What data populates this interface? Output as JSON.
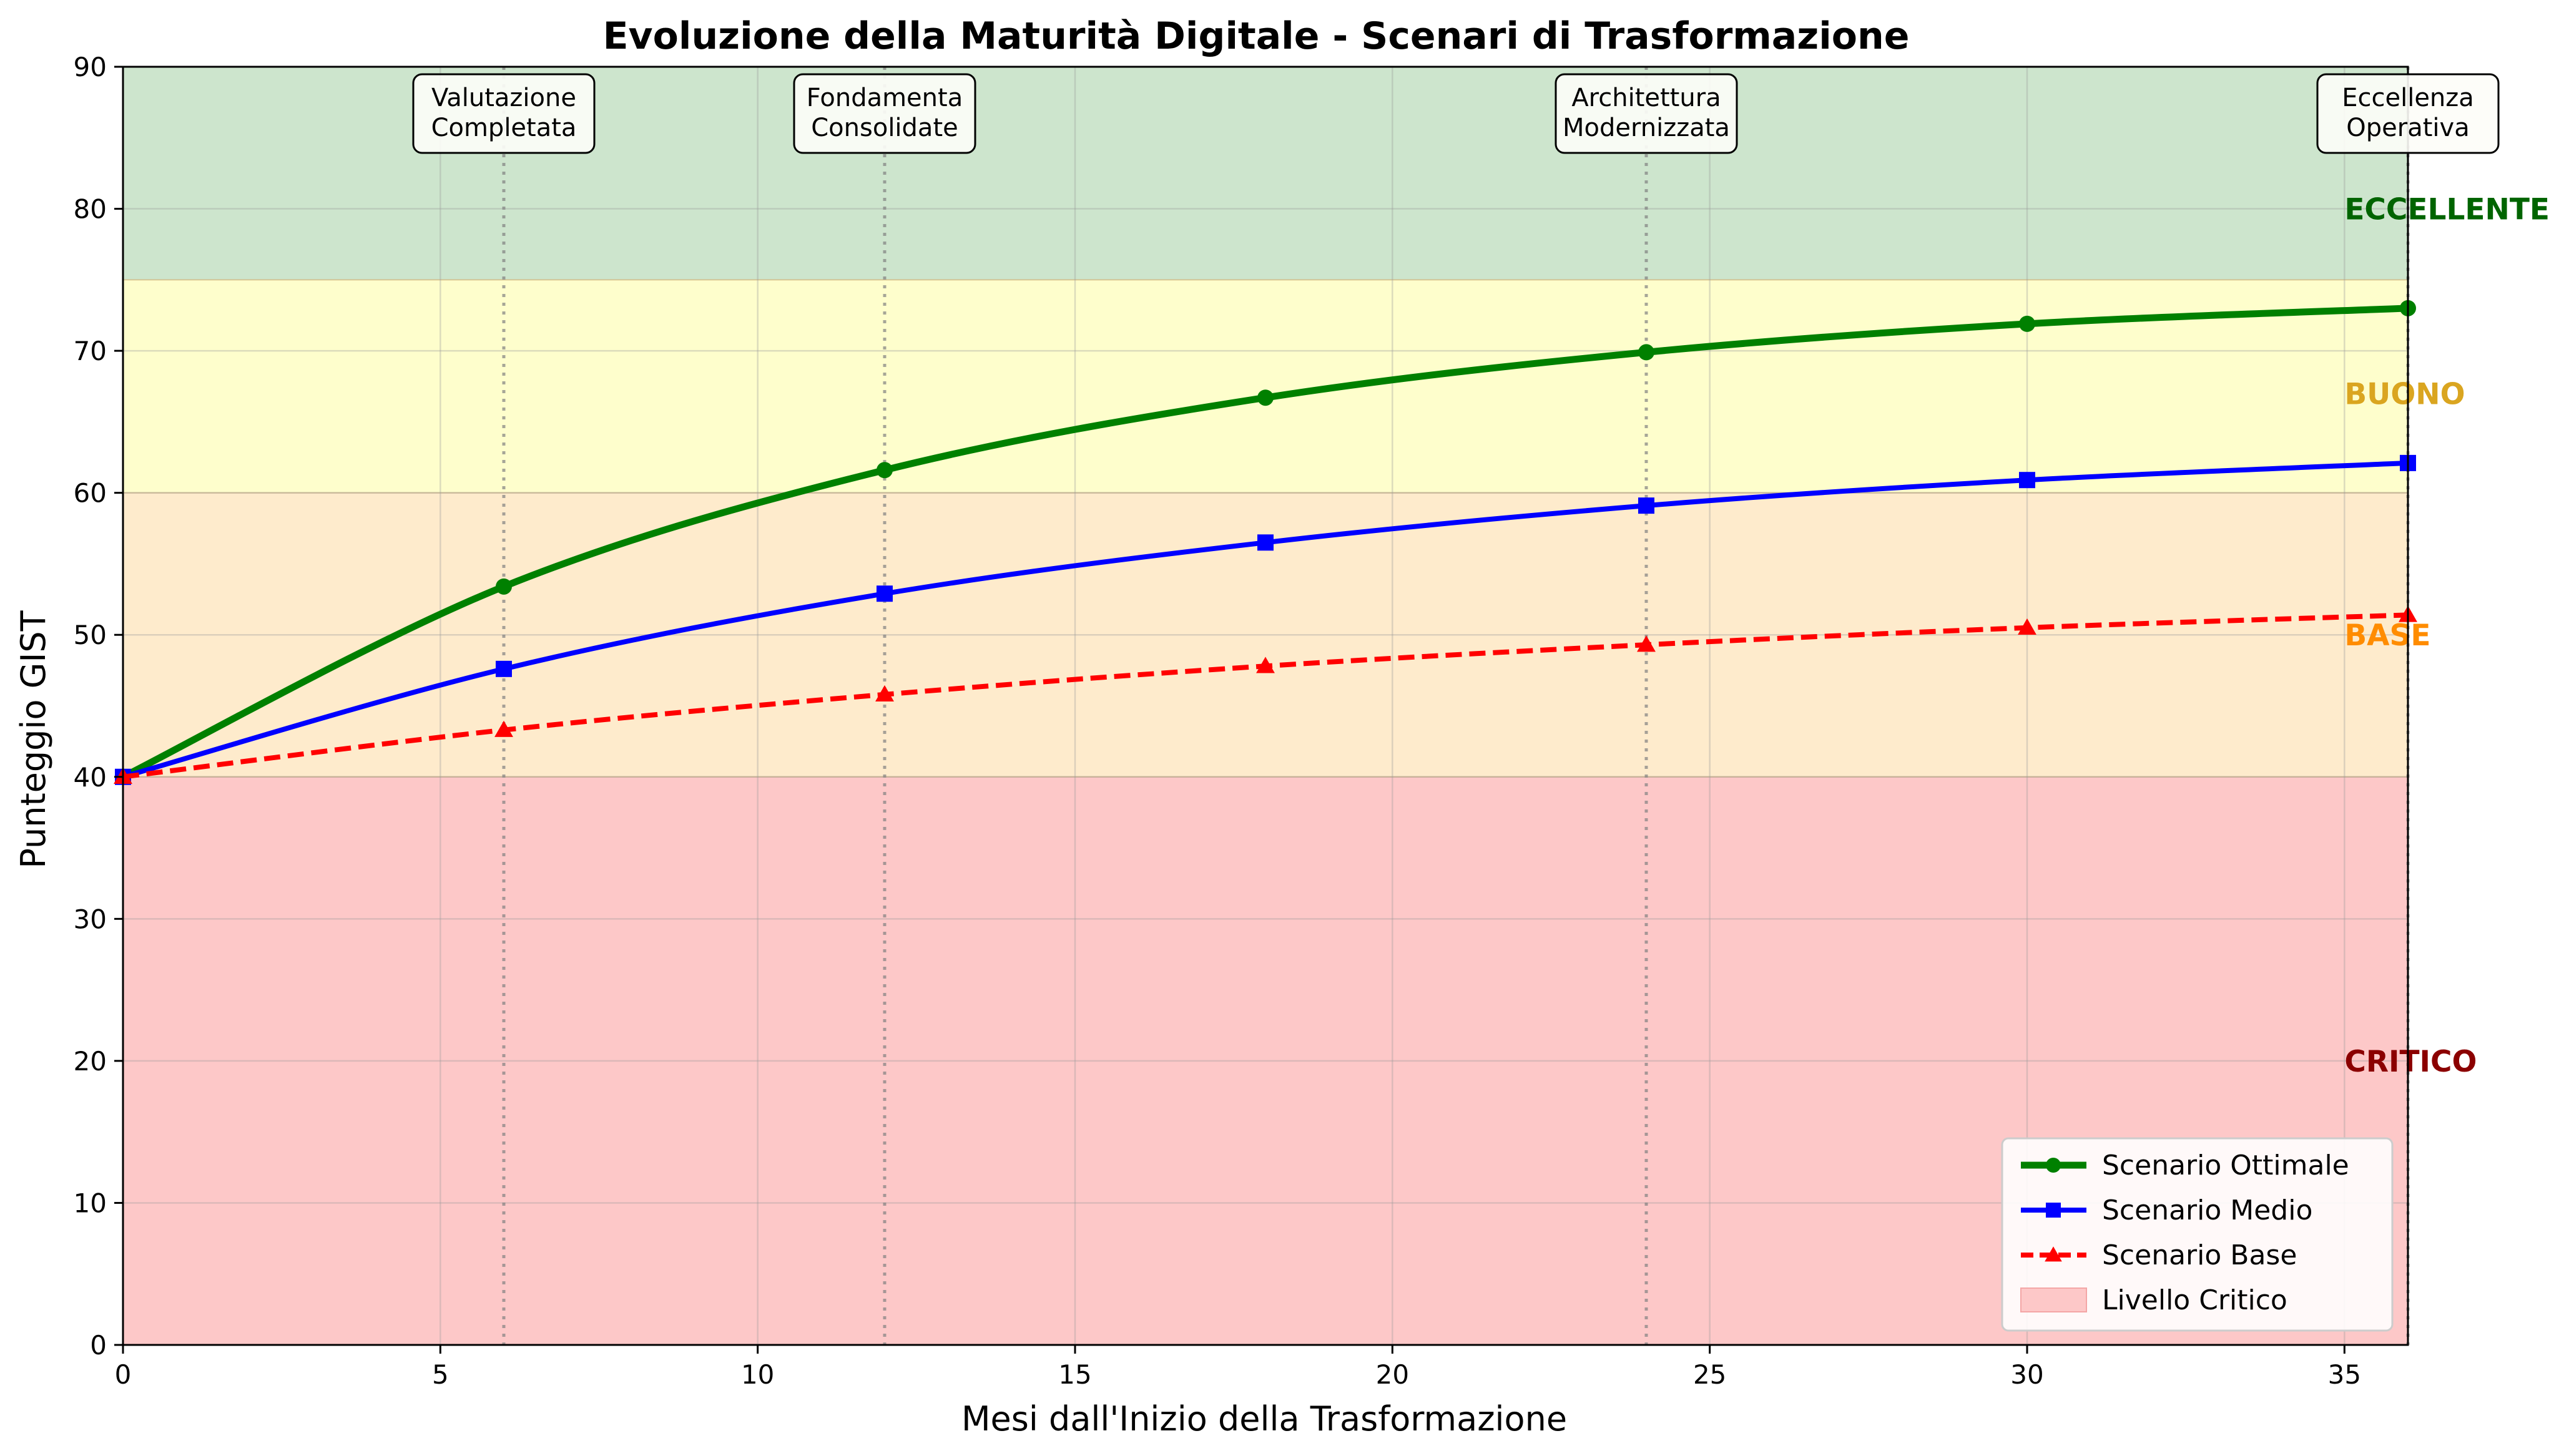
{
  "chart_data": {
    "type": "line",
    "title": "Evoluzione della Maturità Digitale - Scenari di Trasformazione",
    "xlabel": "Mesi dall'Inizio della Trasformazione",
    "ylabel": "Punteggio GIST",
    "xlim": [
      0,
      36
    ],
    "ylim": [
      0,
      90
    ],
    "xticks": [
      0,
      5,
      10,
      15,
      20,
      25,
      30,
      35
    ],
    "yticks": [
      0,
      10,
      20,
      30,
      40,
      50,
      60,
      70,
      80,
      90
    ],
    "grid": true,
    "legend_position": "lower-right",
    "zones": [
      {
        "key": "critico",
        "from": 0,
        "to": 40,
        "label": "CRITICO",
        "label_y": 20,
        "fill": "#fdc8c8",
        "text_color": "#8b0000"
      },
      {
        "key": "base",
        "from": 40,
        "to": 60,
        "label": "BASE",
        "label_y": 50,
        "fill": "#feebcc",
        "text_color": "#ff8c00"
      },
      {
        "key": "buono",
        "from": 60,
        "to": 75,
        "label": "BUONO",
        "label_y": 67,
        "fill": "#fefecc",
        "text_color": "#daa520"
      },
      {
        "key": "eccellente",
        "from": 75,
        "to": 90,
        "label": "ECCELLENTE",
        "label_y": 80,
        "fill": "#cde5cd",
        "text_color": "#006400"
      }
    ],
    "milestones": [
      {
        "x": 6,
        "lines": [
          "Valutazione",
          "Completata"
        ]
      },
      {
        "x": 12,
        "lines": [
          "Fondamenta",
          "Consolidate"
        ]
      },
      {
        "x": 24,
        "lines": [
          "Architettura",
          "Modernizzata"
        ]
      },
      {
        "x": 36,
        "lines": [
          "Eccellenza",
          "Operativa"
        ]
      }
    ],
    "series": [
      {
        "name": "Scenario Ottimale",
        "color": "#008000",
        "marker": "circle",
        "dash": "solid",
        "x": [
          0,
          6,
          12,
          18,
          24,
          30,
          36
        ],
        "y": [
          40.0,
          53.4,
          61.6,
          66.7,
          69.9,
          71.9,
          73.0
        ]
      },
      {
        "name": "Scenario Medio",
        "color": "#0000ff",
        "marker": "square",
        "dash": "solid",
        "x": [
          0,
          6,
          12,
          18,
          24,
          30,
          36
        ],
        "y": [
          40.0,
          47.6,
          52.9,
          56.5,
          59.1,
          60.9,
          62.1
        ]
      },
      {
        "name": "Scenario Base",
        "color": "#ff0000",
        "marker": "triangle",
        "dash": "dashed",
        "x": [
          0,
          6,
          12,
          18,
          24,
          30,
          36
        ],
        "y": [
          40.0,
          43.3,
          45.8,
          47.8,
          49.3,
          50.5,
          51.4
        ]
      }
    ],
    "legend": [
      {
        "label": "Scenario Ottimale",
        "kind": "line",
        "color": "#008000",
        "marker": "circle",
        "dash": "solid"
      },
      {
        "label": "Scenario Medio",
        "kind": "line",
        "color": "#0000ff",
        "marker": "square",
        "dash": "solid"
      },
      {
        "label": "Scenario Base",
        "kind": "line",
        "color": "#ff0000",
        "marker": "triangle",
        "dash": "dashed"
      },
      {
        "label": "Livello Critico",
        "kind": "patch",
        "color": "#fdc8c8"
      }
    ]
  }
}
